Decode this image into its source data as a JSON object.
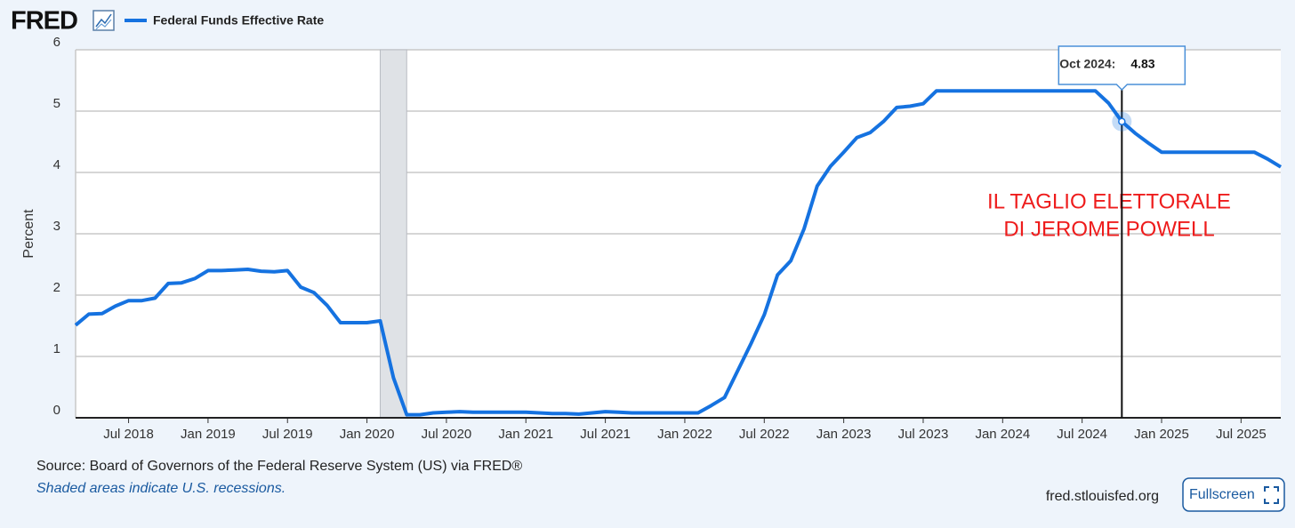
{
  "chart_data": {
    "type": "line",
    "brand": "FRED",
    "ylabel": "Percent",
    "series": [
      {
        "name": "Federal Funds Effective Rate",
        "color": "#1572e0",
        "x": [
          "2018-03",
          "2018-04",
          "2018-05",
          "2018-06",
          "2018-07",
          "2018-08",
          "2018-09",
          "2018-10",
          "2018-11",
          "2018-12",
          "2019-01",
          "2019-02",
          "2019-03",
          "2019-04",
          "2019-05",
          "2019-06",
          "2019-07",
          "2019-08",
          "2019-09",
          "2019-10",
          "2019-11",
          "2019-12",
          "2020-01",
          "2020-02",
          "2020-03",
          "2020-04",
          "2020-05",
          "2020-06",
          "2020-07",
          "2020-08",
          "2020-09",
          "2020-10",
          "2020-11",
          "2020-12",
          "2021-01",
          "2021-02",
          "2021-03",
          "2021-04",
          "2021-05",
          "2021-06",
          "2021-07",
          "2021-08",
          "2021-09",
          "2021-10",
          "2021-11",
          "2021-12",
          "2022-01",
          "2022-02",
          "2022-03",
          "2022-04",
          "2022-05",
          "2022-06",
          "2022-07",
          "2022-08",
          "2022-09",
          "2022-10",
          "2022-11",
          "2022-12",
          "2023-01",
          "2023-02",
          "2023-03",
          "2023-04",
          "2023-05",
          "2023-06",
          "2023-07",
          "2023-08",
          "2023-09",
          "2023-10",
          "2023-11",
          "2023-12",
          "2024-01",
          "2024-02",
          "2024-03",
          "2024-04",
          "2024-05",
          "2024-06",
          "2024-07",
          "2024-08",
          "2024-09",
          "2024-10",
          "2024-11",
          "2024-12",
          "2025-01",
          "2025-02",
          "2025-03",
          "2025-04",
          "2025-05",
          "2025-06",
          "2025-07",
          "2025-08",
          "2025-09",
          "2025-10"
        ],
        "values": [
          1.51,
          1.69,
          1.7,
          1.82,
          1.91,
          1.91,
          1.95,
          2.19,
          2.2,
          2.27,
          2.4,
          2.4,
          2.41,
          2.42,
          2.39,
          2.38,
          2.4,
          2.13,
          2.04,
          1.83,
          1.55,
          1.55,
          1.55,
          1.58,
          0.65,
          0.05,
          0.05,
          0.08,
          0.09,
          0.1,
          0.09,
          0.09,
          0.09,
          0.09,
          0.09,
          0.08,
          0.07,
          0.07,
          0.06,
          0.08,
          0.1,
          0.09,
          0.08,
          0.08,
          0.08,
          0.08,
          0.08,
          0.08,
          0.2,
          0.33,
          0.77,
          1.21,
          1.68,
          2.33,
          2.56,
          3.08,
          3.78,
          4.1,
          4.33,
          4.57,
          4.65,
          4.83,
          5.06,
          5.08,
          5.12,
          5.33,
          5.33,
          5.33,
          5.33,
          5.33,
          5.33,
          5.33,
          5.33,
          5.33,
          5.33,
          5.33,
          5.33,
          5.33,
          5.13,
          4.83,
          4.64,
          4.48,
          4.33,
          4.33,
          4.33,
          4.33,
          4.33,
          4.33,
          4.33,
          4.33,
          4.22,
          4.09
        ]
      }
    ],
    "xlim": [
      "2018-03",
      "2025-10"
    ],
    "xticks": [
      {
        "value": "2018-07",
        "label": "Jul 2018"
      },
      {
        "value": "2019-01",
        "label": "Jan 2019"
      },
      {
        "value": "2019-07",
        "label": "Jul 2019"
      },
      {
        "value": "2020-01",
        "label": "Jan 2020"
      },
      {
        "value": "2020-07",
        "label": "Jul 2020"
      },
      {
        "value": "2021-01",
        "label": "Jan 2021"
      },
      {
        "value": "2021-07",
        "label": "Jul 2021"
      },
      {
        "value": "2022-01",
        "label": "Jan 2022"
      },
      {
        "value": "2022-07",
        "label": "Jul 2022"
      },
      {
        "value": "2023-01",
        "label": "Jan 2023"
      },
      {
        "value": "2023-07",
        "label": "Jul 2023"
      },
      {
        "value": "2024-01",
        "label": "Jan 2024"
      },
      {
        "value": "2024-07",
        "label": "Jul 2024"
      },
      {
        "value": "2025-01",
        "label": "Jan 2025"
      },
      {
        "value": "2025-07",
        "label": "Jul 2025"
      }
    ],
    "ylim": [
      0,
      6
    ],
    "yticks": [
      0,
      1,
      2,
      3,
      4,
      5,
      6
    ],
    "grid": true,
    "recessions": [
      {
        "start": "2020-02",
        "end": "2020-04"
      }
    ],
    "tooltip": {
      "x": "2024-10",
      "label": "Oct 2024:",
      "value": 4.83
    },
    "annotation": [
      "IL TAGLIO ELETTORALE",
      "DI JEROME POWELL"
    ],
    "source": "Source: Board of Governors of the Federal Reserve System (US) via FRED®",
    "note": "Shaded areas indicate U.S. recessions.",
    "site": "fred.stlouisfed.org",
    "button": "Fullscreen"
  }
}
